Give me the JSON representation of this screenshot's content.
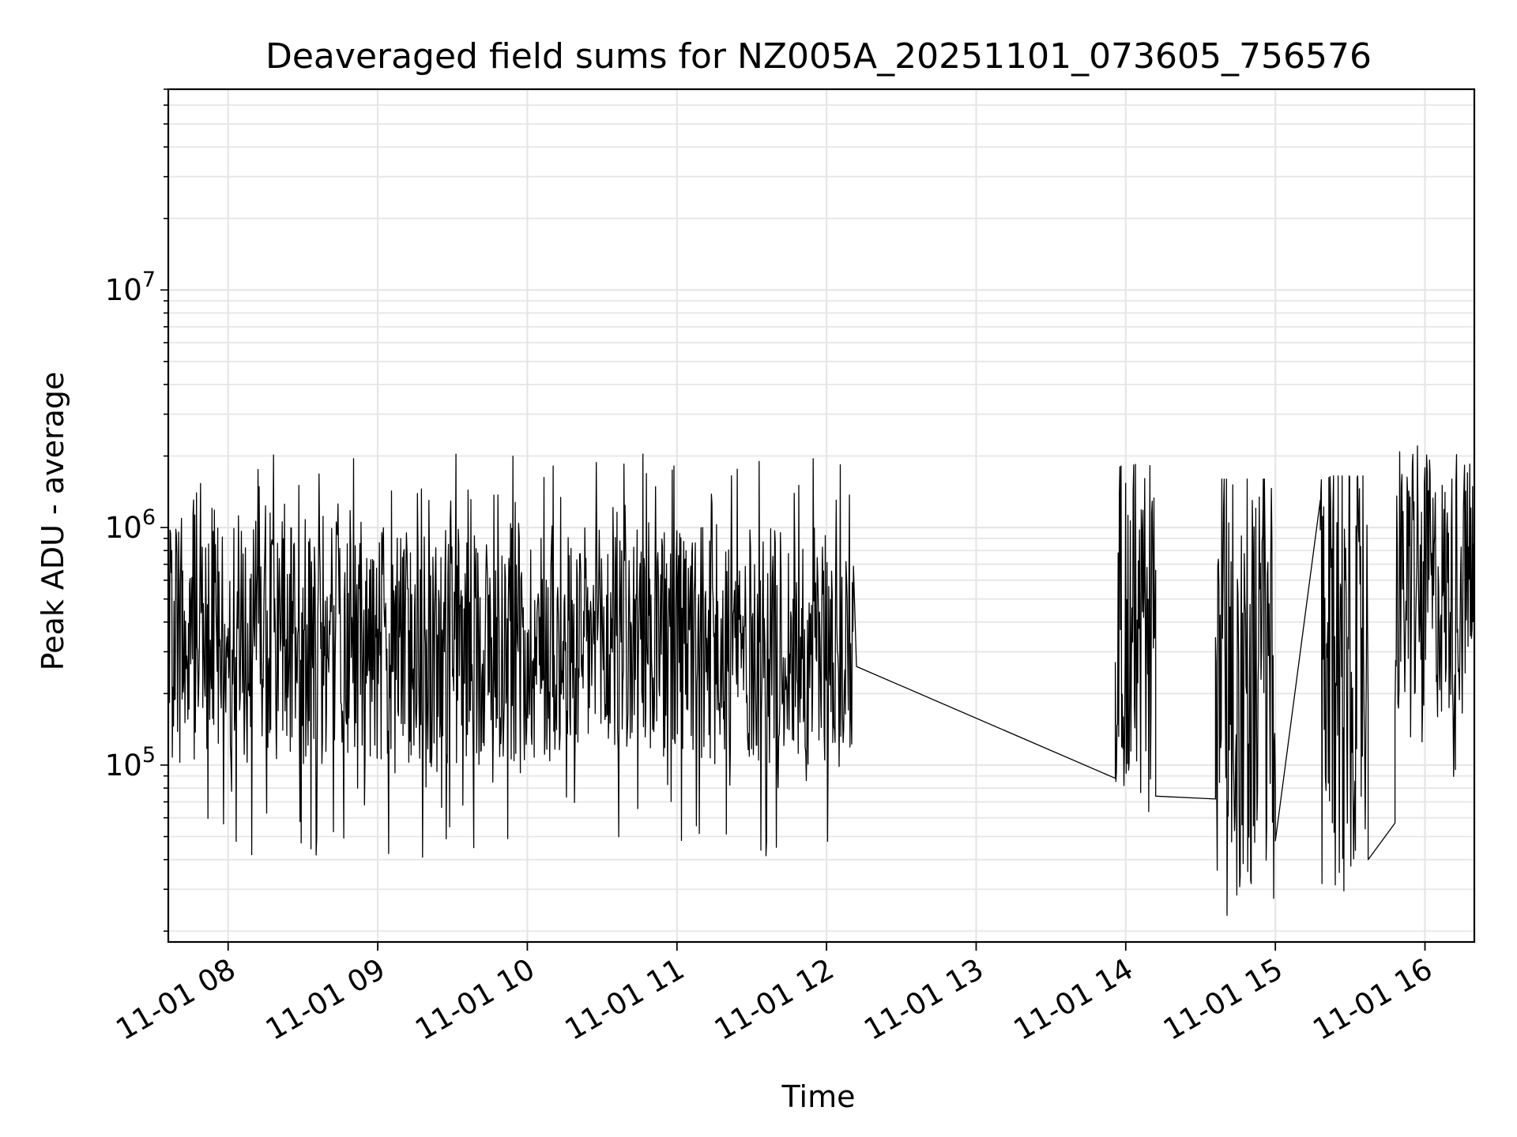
{
  "chart_data": {
    "type": "line",
    "title": "Deaveraged field sums for NZ005A_20251101_073605_756576",
    "xlabel": "Time",
    "ylabel": "Peak ADU - average",
    "yscale": "log",
    "ylim": [
      18000,
      70000000
    ],
    "xlim_hours": [
      7.6,
      16.33
    ],
    "grid": true,
    "line_color": "#000000",
    "grid_color": "#e6e6e6",
    "x_ticks": [
      {
        "hour": 8,
        "label": "11-01 08"
      },
      {
        "hour": 9,
        "label": "11-01 09"
      },
      {
        "hour": 10,
        "label": "11-01 10"
      },
      {
        "hour": 11,
        "label": "11-01 11"
      },
      {
        "hour": 12,
        "label": "11-01 12"
      },
      {
        "hour": 13,
        "label": "11-01 13"
      },
      {
        "hour": 14,
        "label": "11-01 14"
      },
      {
        "hour": 15,
        "label": "11-01 15"
      },
      {
        "hour": 16,
        "label": "11-01 16"
      }
    ],
    "y_ticks": [
      {
        "value": 100000,
        "base": "10",
        "exp": "5"
      },
      {
        "value": 1000000,
        "base": "10",
        "exp": "6"
      },
      {
        "value": 10000000,
        "base": "10",
        "exp": "7"
      }
    ],
    "series": [
      {
        "name": "deaveraged field sums",
        "segments": [
          {
            "t_start": 7.6,
            "t_end": 12.18,
            "low": 100000,
            "high": 1000000,
            "max": 2050000,
            "min": 40000
          },
          {
            "t_start": 12.2,
            "t_end": 13.93,
            "from": 260000,
            "to": 88000,
            "kind": "gap"
          },
          {
            "t_start": 13.93,
            "t_end": 14.2,
            "low": 70000,
            "high": 1800000,
            "max": 1850000,
            "min": 52000
          },
          {
            "t_start": 14.2,
            "t_end": 14.6,
            "from": 74000,
            "to": 72000,
            "kind": "gap"
          },
          {
            "t_start": 14.6,
            "t_end": 15.0,
            "low": 30000,
            "high": 1600000,
            "max": 1600000,
            "min": 21000
          },
          {
            "t_start": 15.0,
            "t_end": 15.3,
            "from": 48000,
            "to": 1300000,
            "kind": "gap"
          },
          {
            "t_start": 15.3,
            "t_end": 15.62,
            "low": 40000,
            "high": 1650000,
            "max": 1650000,
            "min": 29000
          },
          {
            "t_start": 15.62,
            "t_end": 15.8,
            "from": 40000,
            "to": 57000,
            "kind": "gap"
          },
          {
            "t_start": 15.8,
            "t_end": 16.33,
            "low": 150000,
            "high": 1800000,
            "max": 2250000,
            "min": 70000
          }
        ]
      }
    ]
  }
}
